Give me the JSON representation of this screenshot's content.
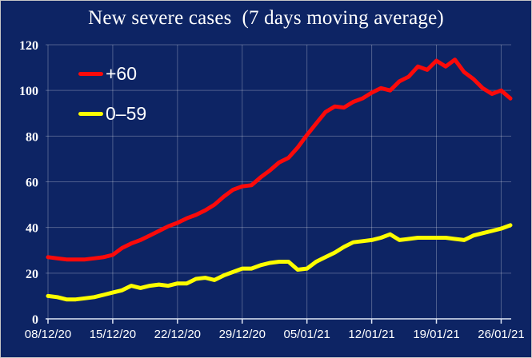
{
  "window": {
    "background_color": "#0d2464",
    "border_color": "#c6c6c6",
    "text_color": "#ffffff"
  },
  "chart_data": {
    "type": "line",
    "title": "New severe cases  (7 days moving average)",
    "xlabel": "",
    "ylabel": "",
    "ylim": [
      0,
      120
    ],
    "yticks": [
      0,
      20,
      40,
      60,
      80,
      100,
      120
    ],
    "x_tick_labels": [
      "08/12/20",
      "15/12/20",
      "22/12/20",
      "29/12/20",
      "05/01/21",
      "12/01/21",
      "19/01/21",
      "26/01/21"
    ],
    "x_interval": "daily",
    "x_ticks_every_n_points": 7,
    "n_points": 51,
    "grid": true,
    "legend_position": "top-left-inside",
    "grid_color": "rgba(255,255,255,0.27)",
    "axis_color": "#dfe6f5",
    "series": [
      {
        "name": "+60",
        "color": "#fb0a0a",
        "values": [
          27,
          26.5,
          26,
          26,
          26,
          26.5,
          27,
          28,
          31,
          33,
          34.5,
          36.5,
          38.5,
          40.5,
          42,
          44,
          45.5,
          47.5,
          50,
          53.5,
          56.5,
          58,
          58.5,
          62,
          65,
          68.5,
          70.5,
          75,
          80.5,
          85.5,
          90.5,
          93,
          92.5,
          95,
          96.5,
          99,
          101,
          100,
          104,
          106,
          110.5,
          109,
          113,
          110.5,
          113.5,
          108,
          105,
          101,
          98.5,
          100,
          96.5
        ]
      },
      {
        "name": "0–59",
        "color": "#fdfd00",
        "values": [
          10,
          9.5,
          8.5,
          8.5,
          9,
          9.5,
          10.5,
          11.5,
          12.5,
          14.5,
          13.5,
          14.5,
          15,
          14.5,
          15.5,
          15.5,
          17.5,
          18,
          17,
          19,
          20.5,
          22,
          22,
          23.5,
          24.5,
          25,
          25,
          21.5,
          22,
          25,
          27,
          29,
          31.5,
          33.5,
          34,
          34.5,
          35.5,
          37,
          34.5,
          35,
          35.5,
          35.5,
          35.5,
          35.5,
          35,
          34.5,
          36.5,
          37.5,
          38.5,
          39.5,
          41
        ]
      }
    ]
  }
}
